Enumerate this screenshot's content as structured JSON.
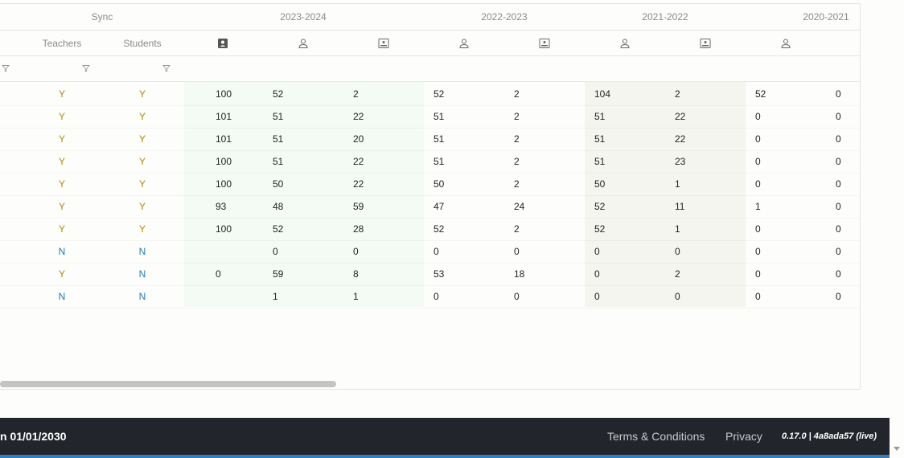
{
  "header": {
    "sync_label": "Sync",
    "years": [
      "2023-2024",
      "2022-2023",
      "2021-2022",
      "2020-2021"
    ],
    "teachers_label": "Teachers",
    "students_label": "Students"
  },
  "rows": [
    {
      "teachers": "Y",
      "students": "Y",
      "c1": "100",
      "c2": "52",
      "c3": "2",
      "c4": "52",
      "c5": "2",
      "c6": "104",
      "c7": "2",
      "c8": "52",
      "c9": "0"
    },
    {
      "teachers": "Y",
      "students": "Y",
      "c1": "101",
      "c2": "51",
      "c3": "22",
      "c4": "51",
      "c5": "2",
      "c6": "51",
      "c7": "22",
      "c8": "0",
      "c9": "0"
    },
    {
      "teachers": "Y",
      "students": "Y",
      "c1": "101",
      "c2": "51",
      "c3": "20",
      "c4": "51",
      "c5": "2",
      "c6": "51",
      "c7": "22",
      "c8": "0",
      "c9": "0"
    },
    {
      "teachers": "Y",
      "students": "Y",
      "c1": "100",
      "c2": "51",
      "c3": "22",
      "c4": "51",
      "c5": "2",
      "c6": "51",
      "c7": "23",
      "c8": "0",
      "c9": "0"
    },
    {
      "teachers": "Y",
      "students": "Y",
      "c1": "100",
      "c2": "50",
      "c3": "22",
      "c4": "50",
      "c5": "2",
      "c6": "50",
      "c7": "1",
      "c8": "0",
      "c9": "0"
    },
    {
      "teachers": "Y",
      "students": "Y",
      "c1": "93",
      "c2": "48",
      "c3": "59",
      "c4": "47",
      "c5": "24",
      "c6": "52",
      "c7": "11",
      "c8": "1",
      "c9": "0"
    },
    {
      "teachers": "Y",
      "students": "Y",
      "c1": "100",
      "c2": "52",
      "c3": "28",
      "c4": "52",
      "c5": "2",
      "c6": "52",
      "c7": "1",
      "c8": "0",
      "c9": "0"
    },
    {
      "teachers": "N",
      "students": "N",
      "c1": "",
      "c2": "0",
      "c3": "0",
      "c4": "0",
      "c5": "0",
      "c6": "0",
      "c7": "0",
      "c8": "0",
      "c9": "0"
    },
    {
      "teachers": "Y",
      "students": "N",
      "c1": "0",
      "c2": "59",
      "c3": "8",
      "c4": "53",
      "c5": "18",
      "c6": "0",
      "c7": "2",
      "c8": "0",
      "c9": "0"
    },
    {
      "teachers": "N",
      "students": "N",
      "c1": "",
      "c2": "1",
      "c3": "1",
      "c4": "0",
      "c5": "0",
      "c6": "0",
      "c7": "0",
      "c8": "0",
      "c9": "0"
    }
  ],
  "footer": {
    "date_text": "n 01/01/2030",
    "terms_label": "Terms & Conditions",
    "privacy_label": "Privacy",
    "version": "0.17.0 | 4a8ada57 (live)"
  },
  "colors": {
    "yes": "#b8860b",
    "no": "#1f7ab8",
    "band_green": "#f4fbf5",
    "band_beige": "#f5f5ef",
    "footer_bg": "#22252b"
  }
}
